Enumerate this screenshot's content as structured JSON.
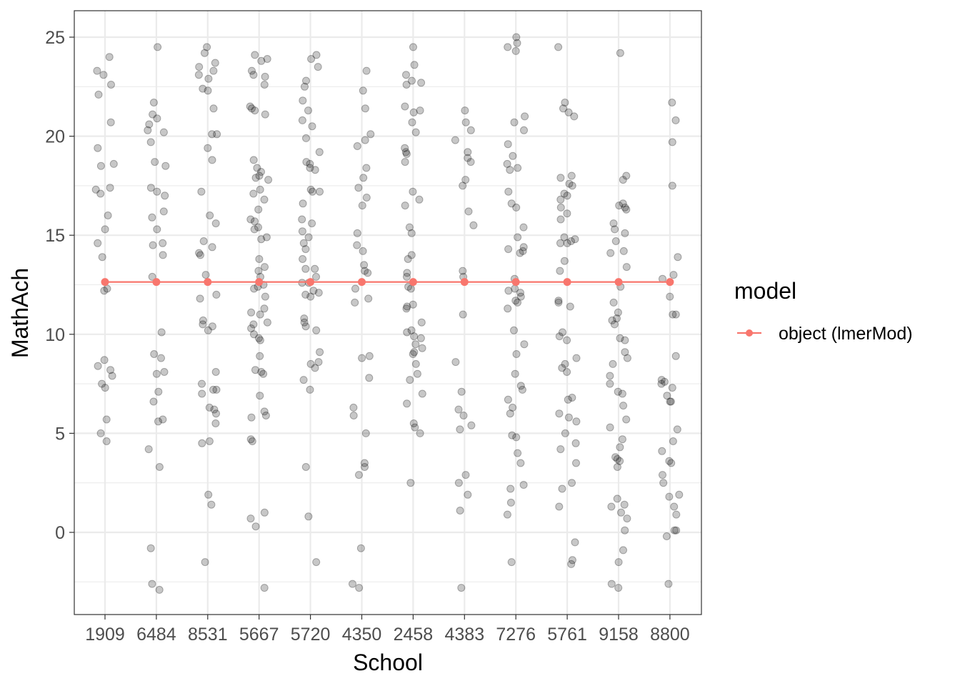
{
  "chart_data": {
    "type": "scatter",
    "xlabel": "School",
    "ylabel": "MathAch",
    "categories": [
      "1909",
      "6484",
      "8531",
      "5667",
      "5720",
      "4350",
      "2458",
      "4383",
      "7276",
      "5761",
      "9158",
      "8800"
    ],
    "ylim": [
      -4.0,
      26.2
    ],
    "y_ticks": [
      0,
      5,
      10,
      15,
      20,
      25
    ],
    "y_tick_labels": [
      "0",
      "5",
      "10",
      "15",
      "20",
      "25"
    ],
    "grid": true,
    "legend": {
      "title": "model",
      "position": "right",
      "entries": [
        "object (lmerMod)"
      ]
    },
    "colors": {
      "fit_line": "#f8766d",
      "points": "#000000",
      "point_alpha": 0.22,
      "grid": "#ebebeb",
      "panel_border": "#333333"
    },
    "series": [
      {
        "name": "object (lmerMod)",
        "kind": "line+points",
        "values": [
          12.64,
          12.64,
          12.64,
          12.64,
          12.64,
          12.64,
          12.64,
          12.64,
          12.64,
          12.64,
          12.64,
          12.64
        ]
      }
    ],
    "observations": [
      {
        "school": "1909",
        "y": [
          24.0,
          23.3,
          23.1,
          22.6,
          22.1,
          20.7,
          19.4,
          18.6,
          18.5,
          17.4,
          17.3,
          17.1,
          16.0,
          15.3,
          14.6,
          13.9,
          12.3,
          12.2,
          8.7,
          8.4,
          8.2,
          7.9,
          7.5,
          7.3,
          5.7,
          5.0,
          4.6
        ]
      },
      {
        "school": "6484",
        "y": [
          24.5,
          21.7,
          21.1,
          20.9,
          20.6,
          20.3,
          20.2,
          19.7,
          18.7,
          18.5,
          17.4,
          17.2,
          17.0,
          16.2,
          15.9,
          15.3,
          14.6,
          14.5,
          14.0,
          12.9,
          10.1,
          9.0,
          8.8,
          8.1,
          8.0,
          7.1,
          6.6,
          5.7,
          5.6,
          4.2,
          3.3,
          -0.8,
          -2.6,
          -2.9
        ]
      },
      {
        "school": "8531",
        "y": [
          24.5,
          24.2,
          23.7,
          23.5,
          23.3,
          23.1,
          22.9,
          22.4,
          22.3,
          21.4,
          20.1,
          20.1,
          19.4,
          18.8,
          17.2,
          16.0,
          15.6,
          14.7,
          14.4,
          14.1,
          14.0,
          13.0,
          12.0,
          11.8,
          10.7,
          10.5,
          10.4,
          10.2,
          8.1,
          7.5,
          7.2,
          7.2,
          7.0,
          6.3,
          6.2,
          6.0,
          5.5,
          4.6,
          4.5,
          1.9,
          1.4,
          -1.5
        ]
      },
      {
        "school": "5667",
        "y": [
          24.1,
          23.9,
          23.8,
          23.3,
          23.1,
          23.0,
          22.6,
          21.5,
          21.4,
          21.3,
          21.1,
          18.8,
          18.4,
          18.2,
          18.0,
          17.9,
          17.8,
          17.3,
          17.1,
          16.8,
          16.3,
          15.8,
          15.7,
          15.4,
          15.3,
          14.9,
          14.8,
          13.8,
          13.4,
          13.2,
          12.9,
          12.5,
          12.4,
          12.3,
          11.9,
          11.3,
          11.1,
          11.0,
          10.6,
          10.5,
          10.3,
          10.0,
          9.8,
          9.7,
          8.9,
          8.2,
          8.1,
          8.0,
          6.9,
          6.1,
          5.9,
          5.8,
          4.7,
          4.6,
          1.0,
          0.7,
          0.3,
          -2.8
        ]
      },
      {
        "school": "5720",
        "y": [
          24.1,
          23.9,
          23.5,
          22.8,
          22.5,
          21.8,
          21.3,
          20.8,
          20.5,
          19.9,
          19.2,
          18.7,
          18.6,
          18.4,
          18.3,
          17.3,
          17.2,
          17.2,
          16.6,
          15.8,
          15.6,
          15.2,
          14.9,
          14.6,
          14.3,
          13.8,
          13.3,
          13.3,
          12.9,
          12.6,
          12.6,
          12.2,
          12.1,
          12.0,
          11.9,
          10.8,
          10.6,
          10.4,
          10.2,
          9.1,
          8.6,
          8.5,
          8.3,
          7.7,
          7.2,
          3.3,
          0.8,
          -1.5
        ]
      },
      {
        "school": "4350",
        "y": [
          23.3,
          22.3,
          21.4,
          20.1,
          19.8,
          19.5,
          18.4,
          17.9,
          17.4,
          16.9,
          16.5,
          15.1,
          14.5,
          14.2,
          13.5,
          13.2,
          13.1,
          12.3,
          11.8,
          11.6,
          8.9,
          8.8,
          7.8,
          6.3,
          5.9,
          5.0,
          3.5,
          3.3,
          2.9,
          -0.8,
          -2.6,
          -2.8
        ]
      },
      {
        "school": "2458",
        "y": [
          24.5,
          23.6,
          23.1,
          22.8,
          22.7,
          22.6,
          21.5,
          21.3,
          21.2,
          20.7,
          20.2,
          19.4,
          19.2,
          19.1,
          18.7,
          17.2,
          16.8,
          16.5,
          15.4,
          15.1,
          14.0,
          13.8,
          13.1,
          12.9,
          12.4,
          12.3,
          11.5,
          11.4,
          11.3,
          10.6,
          10.2,
          10.1,
          9.9,
          9.8,
          9.5,
          9.3,
          9.1,
          9.0,
          8.5,
          8.0,
          7.7,
          7.0,
          6.5,
          5.5,
          5.3,
          5.0,
          2.5
        ]
      },
      {
        "school": "4383",
        "y": [
          21.3,
          20.7,
          20.3,
          19.8,
          19.2,
          18.9,
          18.7,
          17.8,
          17.5,
          16.2,
          15.5,
          13.2,
          12.9,
          11.0,
          8.6,
          7.1,
          6.2,
          5.9,
          5.4,
          5.2,
          2.9,
          2.5,
          1.9,
          1.1,
          -2.8
        ]
      },
      {
        "school": "7276",
        "y": [
          25.0,
          24.7,
          24.5,
          24.3,
          21.0,
          20.7,
          20.3,
          19.6,
          19.0,
          18.6,
          18.4,
          18.3,
          17.2,
          16.6,
          16.4,
          15.4,
          14.9,
          14.4,
          14.3,
          14.2,
          14.1,
          12.8,
          12.3,
          12.2,
          12.1,
          11.9,
          11.7,
          11.6,
          11.3,
          10.2,
          9.5,
          9.0,
          8.0,
          7.4,
          7.2,
          6.7,
          6.3,
          6.0,
          4.9,
          4.8,
          4.0,
          3.5,
          2.4,
          2.2,
          1.5,
          0.9,
          -1.5
        ]
      },
      {
        "school": "5761",
        "y": [
          24.5,
          21.7,
          21.4,
          21.2,
          21.0,
          18.0,
          17.9,
          17.6,
          17.5,
          17.1,
          17.0,
          16.8,
          16.4,
          16.1,
          15.8,
          14.9,
          14.8,
          14.7,
          14.6,
          14.6,
          13.7,
          13.2,
          11.7,
          11.6,
          11.4,
          10.1,
          9.9,
          9.7,
          8.8,
          8.5,
          8.3,
          8.1,
          6.8,
          6.7,
          6.0,
          5.8,
          5.6,
          5.0,
          4.5,
          4.2,
          3.5,
          2.5,
          2.2,
          1.3,
          -0.5,
          -1.4,
          -1.6
        ]
      },
      {
        "school": "9158",
        "y": [
          24.2,
          18.0,
          17.8,
          16.6,
          16.5,
          16.4,
          16.3,
          15.6,
          15.3,
          15.1,
          14.7,
          14.2,
          14.1,
          13.4,
          12.4,
          11.6,
          11.1,
          10.8,
          10.7,
          10.5,
          9.8,
          9.7,
          9.1,
          8.8,
          8.5,
          7.9,
          7.5,
          7.1,
          7.0,
          6.4,
          5.7,
          5.3,
          4.7,
          4.3,
          3.8,
          3.7,
          3.6,
          3.3,
          1.7,
          1.4,
          1.3,
          1.0,
          0.7,
          0.1,
          -0.9,
          -1.5,
          -2.6,
          -2.8
        ]
      },
      {
        "school": "8800",
        "y": [
          21.7,
          20.8,
          19.7,
          17.5,
          13.9,
          13.0,
          12.8,
          11.9,
          11.0,
          11.0,
          8.9,
          7.7,
          7.6,
          7.5,
          7.3,
          6.9,
          6.6,
          6.6,
          5.2,
          4.6,
          4.1,
          3.6,
          3.5,
          2.9,
          2.5,
          1.9,
          1.8,
          1.3,
          0.9,
          0.1,
          0.1,
          -0.2,
          -2.6
        ]
      }
    ]
  }
}
